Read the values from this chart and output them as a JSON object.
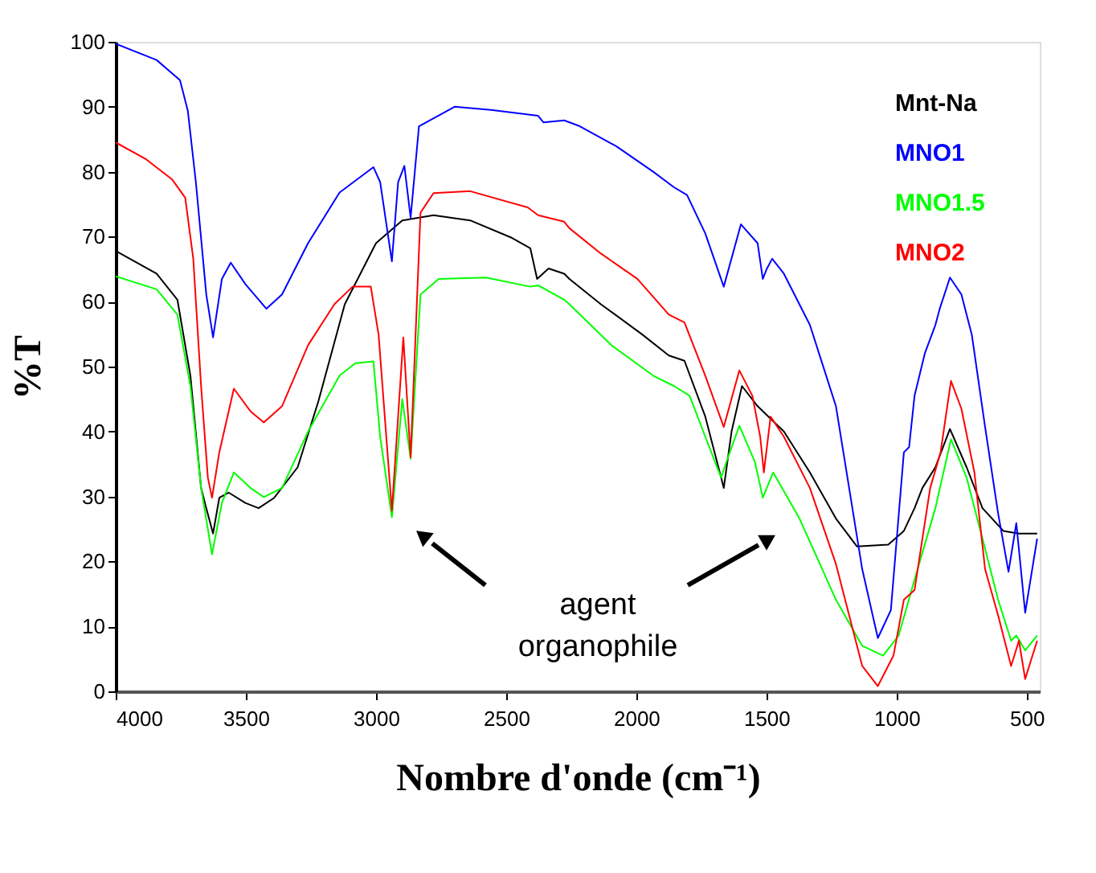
{
  "chart_data": {
    "type": "line",
    "xlabel": "Nombre d'onde (cm⁻¹)",
    "ylabel": "%T",
    "xlim": [
      4000,
      450
    ],
    "xticks": [
      4000,
      3500,
      3000,
      2500,
      2000,
      1500,
      1000,
      500
    ],
    "ylim": [
      0,
      100
    ],
    "yticks": [
      0,
      10,
      20,
      30,
      40,
      50,
      60,
      70,
      80,
      90,
      100
    ],
    "grid": false,
    "legend": "top right",
    "marker": "none",
    "line_style": "solid",
    "annotations": [
      "agent organophile"
    ],
    "series": [
      {
        "name": "Mnt-Na",
        "color": "#000000",
        "x": [
          4000,
          3843,
          3763,
          3713,
          3672,
          3652,
          3626,
          3602,
          3566,
          3502,
          3451,
          3391,
          3301,
          3221,
          3120,
          3000,
          2899,
          2779,
          2638,
          2477,
          2407,
          2381,
          2337,
          2277,
          2257,
          2136,
          1976,
          1875,
          1815,
          1735,
          1674,
          1664,
          1634,
          1594,
          1534,
          1433,
          1333,
          1233,
          1152,
          1032,
          972,
          931,
          901,
          851,
          795,
          731,
          670,
          590,
          530,
          460
        ],
        "values": [
          67.8,
          64.3,
          60.3,
          48.6,
          31.3,
          28.2,
          24.3,
          29.8,
          30.6,
          29.0,
          28.2,
          29.8,
          34.5,
          44.7,
          59.6,
          69.0,
          72.5,
          73.3,
          72.5,
          69.8,
          68.2,
          63.5,
          65.1,
          64.3,
          63.5,
          59.6,
          54.9,
          51.7,
          50.9,
          42.3,
          32.9,
          31.3,
          40.0,
          47.0,
          43.9,
          40.0,
          33.7,
          26.6,
          22.3,
          22.6,
          24.7,
          28.2,
          31.3,
          34.5,
          40.4,
          34.5,
          28.2,
          24.7,
          24.3,
          24.3
        ]
      },
      {
        "name": "MNO1",
        "color": "#0000ff",
        "x": [
          4000,
          3843,
          3753,
          3723,
          3692,
          3652,
          3626,
          3592,
          3558,
          3502,
          3421,
          3361,
          3261,
          3140,
          3010,
          2984,
          2939,
          2915,
          2891,
          2867,
          2835,
          2698,
          2558,
          2377,
          2357,
          2277,
          2217,
          2076,
          1935,
          1855,
          1805,
          1735,
          1664,
          1598,
          1534,
          1514,
          1498,
          1478,
          1433,
          1333,
          1233,
          1132,
          1072,
          1022,
          972,
          952,
          931,
          891,
          851,
          835,
          795,
          751,
          711,
          660,
          610,
          570,
          540,
          506,
          460
        ],
        "values": [
          99.7,
          97.2,
          94.1,
          89.4,
          78.4,
          61.1,
          54.5,
          63.5,
          66.0,
          62.7,
          58.9,
          61.1,
          69.0,
          76.8,
          80.7,
          78.4,
          66.2,
          78.4,
          80.9,
          72.9,
          87.0,
          90.0,
          89.5,
          88.6,
          87.6,
          87.9,
          87.0,
          83.9,
          80.0,
          77.6,
          76.4,
          70.5,
          62.3,
          71.9,
          69.0,
          63.5,
          65.1,
          66.6,
          64.3,
          56.4,
          43.9,
          18.8,
          8.2,
          12.5,
          36.8,
          37.6,
          45.5,
          52.1,
          56.4,
          58.8,
          63.7,
          61.1,
          54.9,
          40.7,
          27.4,
          18.4,
          25.9,
          12.1,
          23.5
        ]
      },
      {
        "name": "MNO1.5",
        "color": "#00ff00",
        "x": [
          4000,
          3843,
          3763,
          3713,
          3672,
          3630,
          3592,
          3546,
          3482,
          3431,
          3361,
          3261,
          3140,
          3080,
          3010,
          2984,
          2939,
          2899,
          2867,
          2829,
          2759,
          2578,
          2407,
          2377,
          2277,
          2257,
          2096,
          1935,
          1855,
          1795,
          1735,
          1674,
          1654,
          1604,
          1544,
          1514,
          1474,
          1373,
          1233,
          1132,
          1052,
          992,
          931,
          851,
          791,
          731,
          670,
          610,
          560,
          540,
          506,
          460
        ],
        "values": [
          63.9,
          61.9,
          58.0,
          47.0,
          31.3,
          21.1,
          29.0,
          33.7,
          31.3,
          29.9,
          31.3,
          40.0,
          48.6,
          50.5,
          50.8,
          39.2,
          26.8,
          45.0,
          35.8,
          61.1,
          63.5,
          63.7,
          62.3,
          62.5,
          60.3,
          59.6,
          53.3,
          48.6,
          47.0,
          45.5,
          39.2,
          32.9,
          35.3,
          40.9,
          35.3,
          29.8,
          33.7,
          26.6,
          14.1,
          7.0,
          5.5,
          8.6,
          17.2,
          28.2,
          38.8,
          32.9,
          23.5,
          14.1,
          7.8,
          8.6,
          6.3,
          8.6
        ]
      },
      {
        "name": "MNO2",
        "color": "#ff0000",
        "x": [
          4000,
          3883,
          3783,
          3733,
          3702,
          3672,
          3646,
          3630,
          3602,
          3546,
          3482,
          3431,
          3361,
          3261,
          3160,
          3090,
          3020,
          2990,
          2939,
          2895,
          2867,
          2829,
          2779,
          2638,
          2417,
          2377,
          2277,
          2257,
          2136,
          1996,
          1875,
          1815,
          1735,
          1664,
          1604,
          1554,
          1524,
          1510,
          1484,
          1433,
          1333,
          1233,
          1132,
          1072,
          1012,
          972,
          931,
          871,
          831,
          791,
          751,
          701,
          660,
          610,
          560,
          530,
          506,
          460
        ],
        "values": [
          84.5,
          81.9,
          78.8,
          76.0,
          66.6,
          47.0,
          32.9,
          29.8,
          36.8,
          46.6,
          43.1,
          41.4,
          43.9,
          53.3,
          59.6,
          62.3,
          62.3,
          54.9,
          27.8,
          54.5,
          36.0,
          73.7,
          76.7,
          77.0,
          74.5,
          73.3,
          72.3,
          71.3,
          67.4,
          63.5,
          58.0,
          56.8,
          48.6,
          40.7,
          49.4,
          45.5,
          39.2,
          33.7,
          42.3,
          39.2,
          31.3,
          19.6,
          3.9,
          0.8,
          5.5,
          14.1,
          15.6,
          31.3,
          36.8,
          47.8,
          43.5,
          33.7,
          18.8,
          11.7,
          3.9,
          7.8,
          1.9,
          7.8
        ]
      }
    ]
  }
}
